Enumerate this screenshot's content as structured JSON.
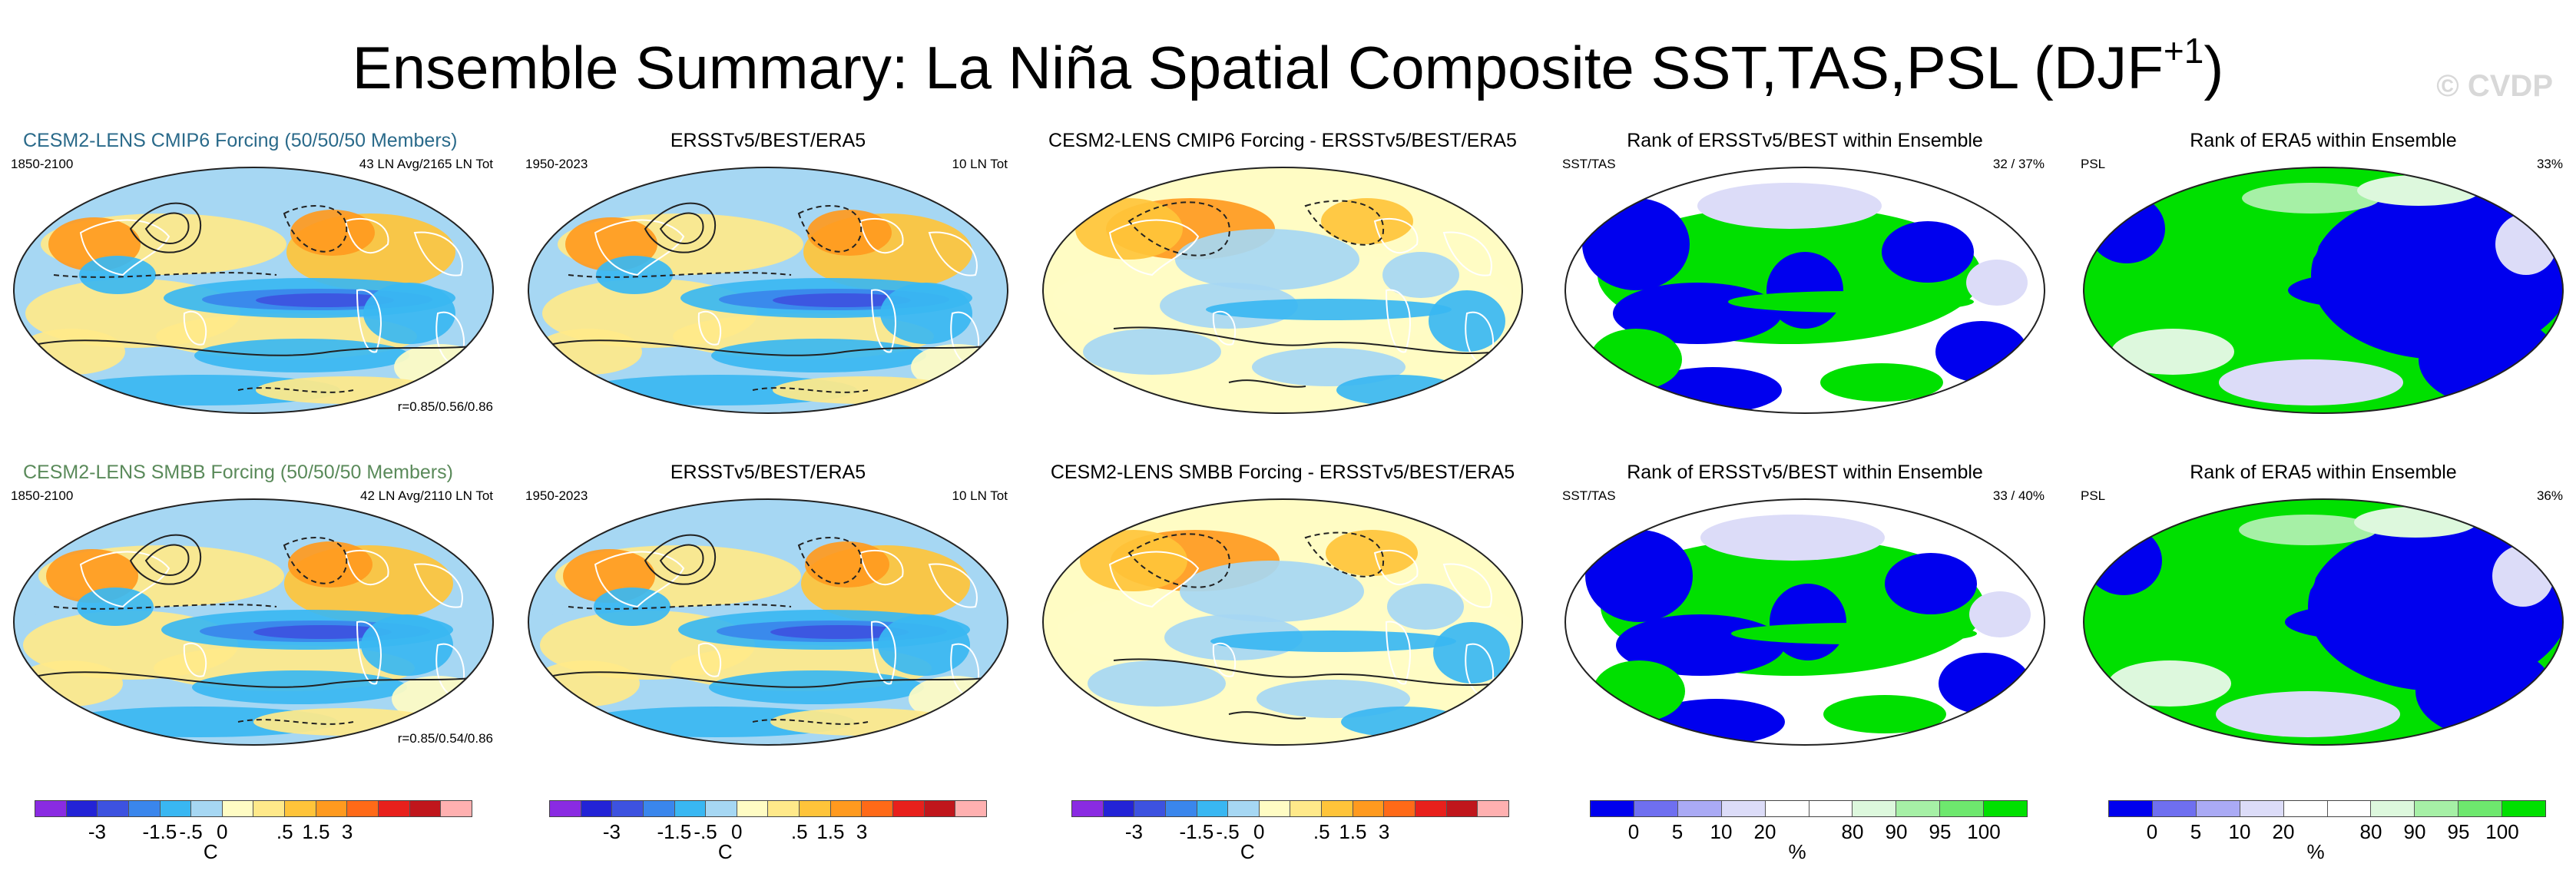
{
  "title": "Ensemble Summary: La Niña Spatial Composite SST,TAS,PSL (DJF",
  "title_sup": "+1",
  "title_close": ")",
  "watermark": "© CVDP",
  "colors": {
    "temp_scale": [
      "#8a2be2",
      "#2323d6",
      "#3d52e0",
      "#3a86ec",
      "#39b7f2",
      "#a6d7f3",
      "#fffcc4",
      "#ffe98a",
      "#ffc43a",
      "#ff9a1f",
      "#ff6a18",
      "#e8201c",
      "#c0161c",
      "#ffb0b0"
    ],
    "rank_scale": [
      "#0000ee",
      "#6f6ff0",
      "#aaaaf5",
      "#dcdcf8",
      "#ffffff",
      "#ffffff",
      "#ddf8dd",
      "#a6f0a6",
      "#6ee86e",
      "#00e000"
    ]
  },
  "chart_data": [
    {
      "type": "heatmap",
      "title": "CESM2-LENS CMIP6 Forcing (50/50/50 Members)",
      "subtitle_left": "1850-2100",
      "subtitle_right": "43 LN Avg/2165 LN Tot",
      "footer": "r=0.85/0.56/0.86",
      "units": "C",
      "variables": [
        "SST",
        "TAS",
        "PSL"
      ]
    },
    {
      "type": "heatmap",
      "title": "ERSSTv5/BEST/ERA5",
      "subtitle_left": "1950-2023",
      "subtitle_right": "10 LN Tot",
      "units": "C"
    },
    {
      "type": "heatmap",
      "title": "CESM2-LENS CMIP6 Forcing - ERSSTv5/BEST/ERA5",
      "units": "C"
    },
    {
      "type": "heatmap",
      "title": "Rank of ERSSTv5/BEST within Ensemble",
      "subtitle_left": "SST/TAS",
      "subtitle_right": "32 / 37%",
      "units": "%"
    },
    {
      "type": "heatmap",
      "title": "Rank of ERA5 within Ensemble",
      "subtitle_left": "PSL",
      "subtitle_right": "33%",
      "units": "%"
    },
    {
      "type": "heatmap",
      "title": "CESM2-LENS SMBB Forcing (50/50/50 Members)",
      "subtitle_left": "1850-2100",
      "subtitle_right": "42 LN Avg/2110 LN Tot",
      "footer": "r=0.85/0.54/0.86",
      "units": "C",
      "variables": [
        "SST",
        "TAS",
        "PSL"
      ]
    },
    {
      "type": "heatmap",
      "title": "ERSSTv5/BEST/ERA5",
      "subtitle_left": "1950-2023",
      "subtitle_right": "10 LN Tot",
      "units": "C"
    },
    {
      "type": "heatmap",
      "title": "CESM2-LENS SMBB Forcing - ERSSTv5/BEST/ERA5",
      "units": "C"
    },
    {
      "type": "heatmap",
      "title": "Rank of ERSSTv5/BEST within Ensemble",
      "subtitle_left": "SST/TAS",
      "subtitle_right": "33 / 40%",
      "units": "%"
    },
    {
      "type": "heatmap",
      "title": "Rank of ERA5 within Ensemble",
      "subtitle_left": "PSL",
      "subtitle_right": "36%",
      "units": "%"
    }
  ],
  "colorbars": {
    "temp": {
      "ticks": [
        "-3",
        "-1.5",
        "-.5",
        "0",
        ".5",
        "1.5",
        "3"
      ],
      "unit": "C"
    },
    "rank": {
      "ticks": [
        "0",
        "5",
        "10",
        "20",
        "80",
        "90",
        "95",
        "100"
      ],
      "unit": "%"
    }
  }
}
